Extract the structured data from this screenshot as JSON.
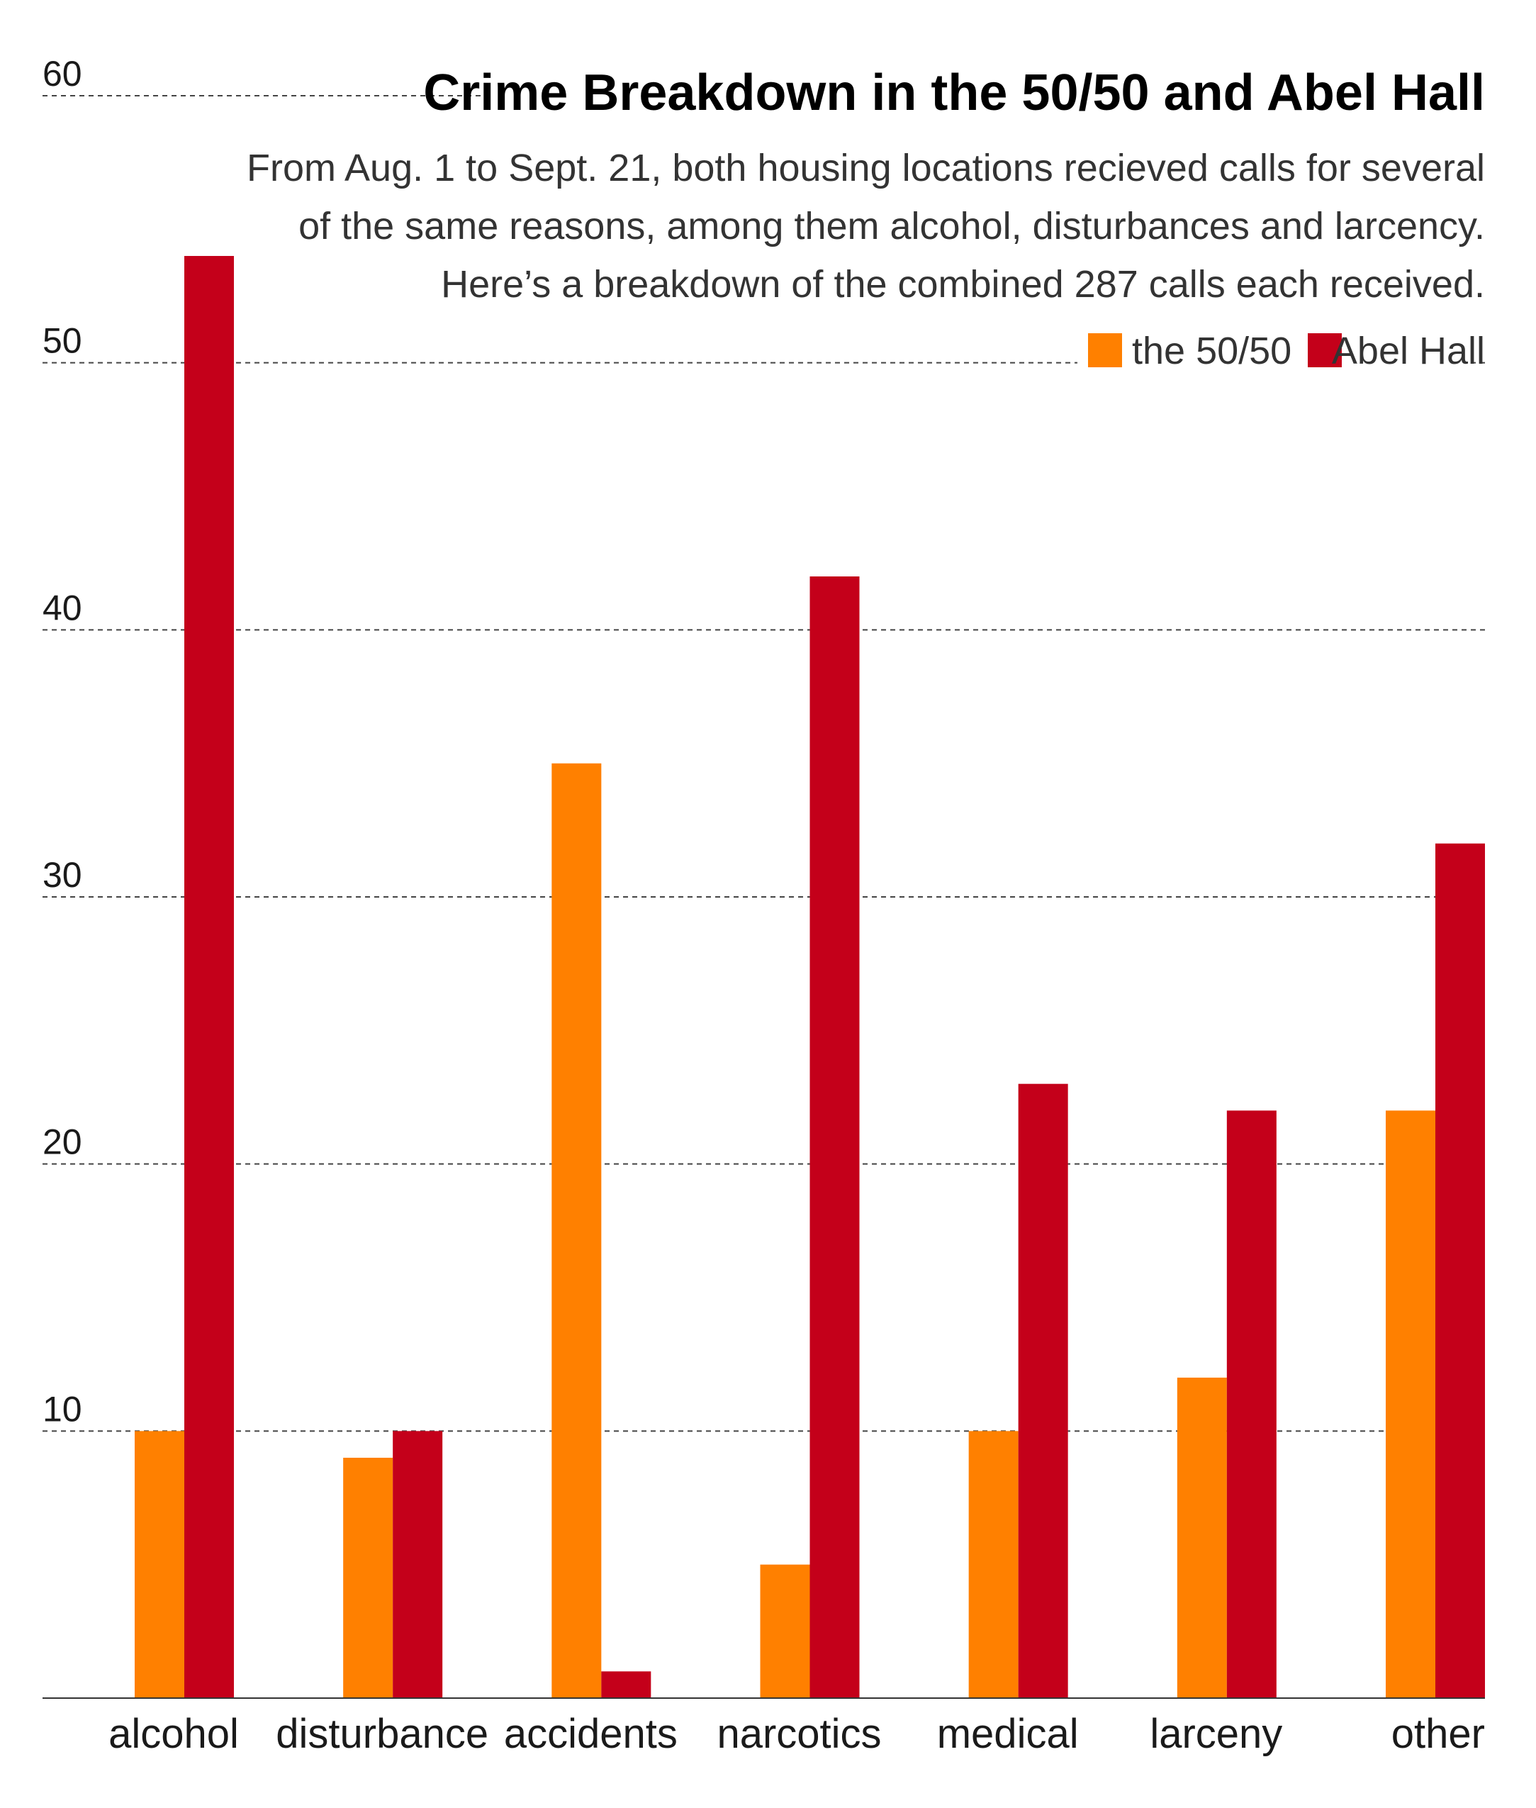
{
  "chart_data": {
    "type": "bar",
    "title": "Crime Breakdown in the 50/50 and Abel Hall",
    "subtitle": [
      "From Aug. 1 to Sept. 21, both housing locations recieved calls for several",
      "of the same reasons, among them alcohol, disturbances and larcency.",
      "Here’s a breakdown of the combined 287 calls each received."
    ],
    "xlabel": "",
    "ylabel": "",
    "ylim": [
      0,
      60
    ],
    "yticks": [
      "10",
      "20",
      "30",
      "40",
      "50",
      "60"
    ],
    "grid": true,
    "legend_position": "top-right",
    "categories": [
      "alcohol",
      "disturbance",
      "accidents",
      "narcotics",
      "medical",
      "larceny",
      "other"
    ],
    "series": [
      {
        "name": "the 50/50",
        "color": "#ff8000",
        "values": [
          10,
          9,
          35,
          5,
          10,
          12,
          22
        ]
      },
      {
        "name": "Abel Hall",
        "color": "#c4001a",
        "values": [
          54,
          10,
          1,
          42,
          23,
          22,
          32
        ]
      }
    ]
  }
}
